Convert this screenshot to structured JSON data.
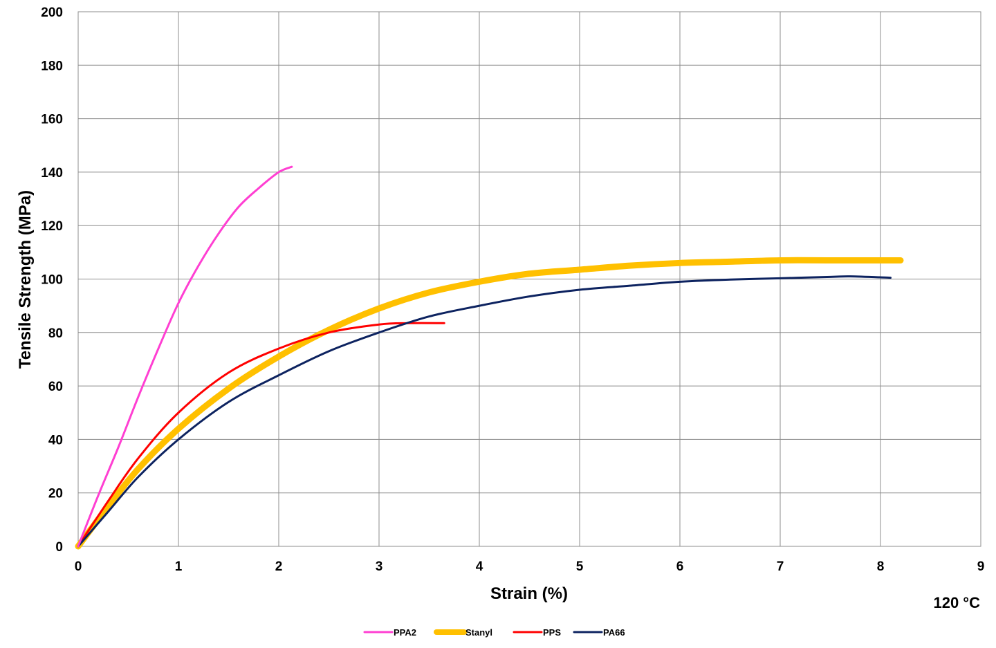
{
  "chart_data": {
    "type": "line",
    "xlabel": "Strain (%)",
    "ylabel": "Tensile Strength (MPa)",
    "annotation": "120 °C",
    "xlim": [
      0,
      9
    ],
    "ylim": [
      0,
      200
    ],
    "xticks": [
      0,
      1,
      2,
      3,
      4,
      5,
      6,
      7,
      8,
      9
    ],
    "yticks": [
      0,
      20,
      40,
      60,
      80,
      100,
      120,
      140,
      160,
      180,
      200
    ],
    "grid": true,
    "legend_position": "bottom-center",
    "series": [
      {
        "name": "PPA2",
        "color": "#ff3fd2",
        "points": [
          [
            0,
            0
          ],
          [
            0.2,
            19
          ],
          [
            0.4,
            37
          ],
          [
            0.6,
            56
          ],
          [
            0.8,
            74
          ],
          [
            1.0,
            91
          ],
          [
            1.2,
            105
          ],
          [
            1.4,
            117
          ],
          [
            1.6,
            127
          ],
          [
            1.8,
            134
          ],
          [
            2.0,
            140
          ],
          [
            2.13,
            142
          ]
        ]
      },
      {
        "name": "Stanyl",
        "color": "#ffc000",
        "points": [
          [
            0,
            0
          ],
          [
            0.3,
            15
          ],
          [
            0.6,
            29
          ],
          [
            1.0,
            44
          ],
          [
            1.5,
            59
          ],
          [
            2.0,
            71
          ],
          [
            2.5,
            81
          ],
          [
            3.0,
            89
          ],
          [
            3.5,
            95
          ],
          [
            4.0,
            99
          ],
          [
            4.5,
            102
          ],
          [
            5.0,
            103.5
          ],
          [
            5.5,
            105
          ],
          [
            6.0,
            106
          ],
          [
            6.5,
            106.5
          ],
          [
            7.0,
            107
          ],
          [
            7.5,
            107
          ],
          [
            8.0,
            107
          ],
          [
            8.2,
            107
          ]
        ]
      },
      {
        "name": "PPS",
        "color": "#ff0000",
        "points": [
          [
            0,
            0
          ],
          [
            0.3,
            17
          ],
          [
            0.6,
            33
          ],
          [
            1.0,
            50
          ],
          [
            1.5,
            65
          ],
          [
            2.0,
            74
          ],
          [
            2.5,
            80
          ],
          [
            3.0,
            83
          ],
          [
            3.3,
            83.5
          ],
          [
            3.65,
            83.5
          ]
        ]
      },
      {
        "name": "PA66",
        "color": "#0d2360",
        "points": [
          [
            0,
            0
          ],
          [
            0.3,
            13
          ],
          [
            0.6,
            26
          ],
          [
            1.0,
            40
          ],
          [
            1.5,
            54
          ],
          [
            2.0,
            64
          ],
          [
            2.5,
            73
          ],
          [
            3.0,
            80
          ],
          [
            3.5,
            86
          ],
          [
            4.0,
            90
          ],
          [
            4.5,
            93.5
          ],
          [
            5.0,
            96
          ],
          [
            5.5,
            97.5
          ],
          [
            6.0,
            99
          ],
          [
            6.5,
            99.8
          ],
          [
            7.0,
            100.3
          ],
          [
            7.5,
            100.8
          ],
          [
            7.7,
            101
          ],
          [
            8.1,
            100.5
          ]
        ]
      }
    ]
  }
}
